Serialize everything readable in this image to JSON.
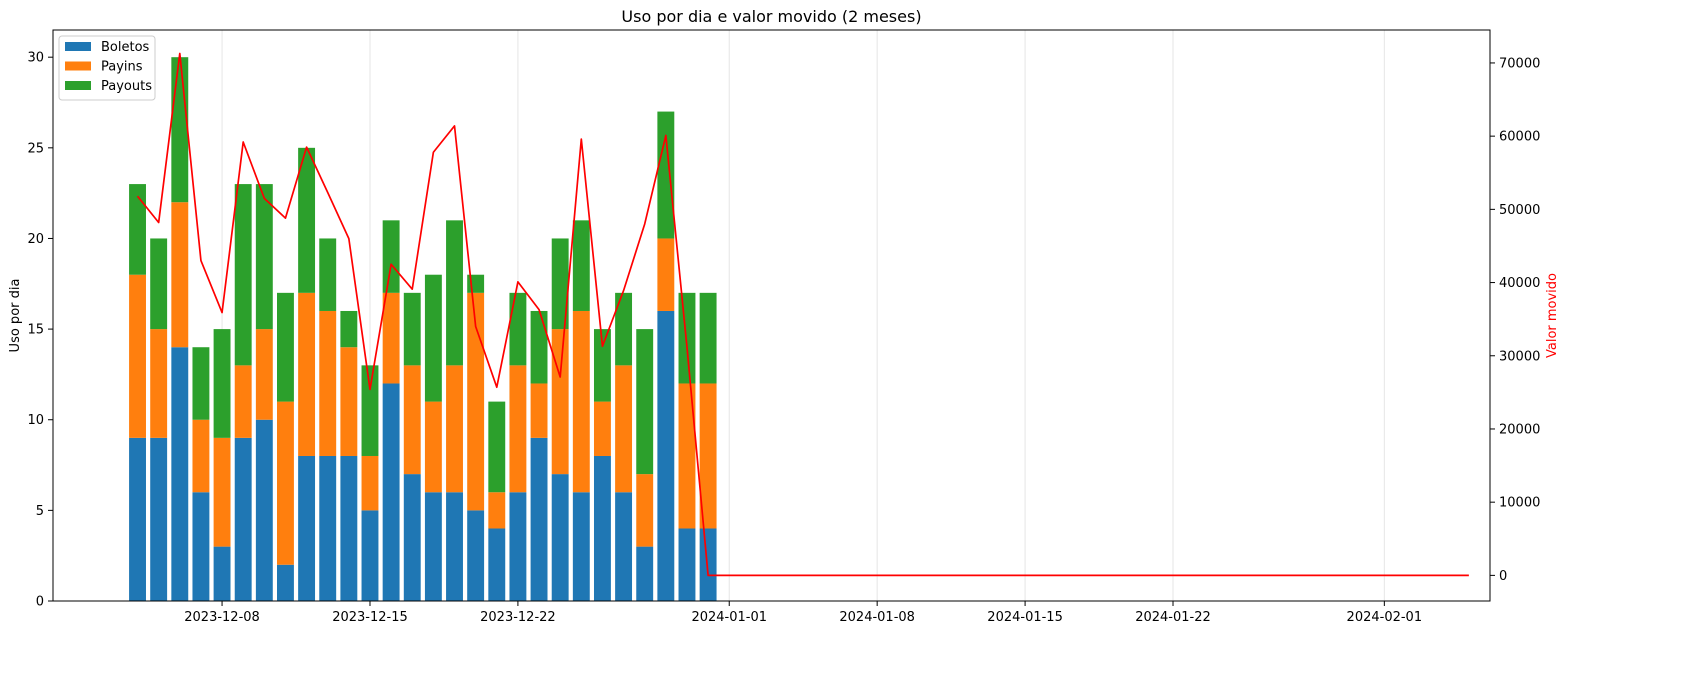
{
  "chart_data": {
    "type": "bar",
    "title": "Uso por dia e valor movido (2 meses)",
    "ylabel": "Uso por dia",
    "y2label": "Valor movido",
    "ylim": [
      0,
      31.5
    ],
    "y2lim": [
      -3500,
      74500
    ],
    "xlim": [
      "2023-11-30",
      "2024-02-06"
    ],
    "yticks": [
      0,
      5,
      10,
      15,
      20,
      25,
      30
    ],
    "y2ticks": [
      0,
      10000,
      20000,
      30000,
      40000,
      50000,
      60000,
      70000
    ],
    "xticks": [
      "2023-12-08",
      "2023-12-15",
      "2023-12-22",
      "2024-01-01",
      "2024-01-08",
      "2024-01-15",
      "2024-01-22",
      "2024-02-01"
    ],
    "x_grid": true,
    "legend_position": "top-left",
    "colors": {
      "Boletos": "#1f77b4",
      "Payins": "#ff7f0e",
      "Payouts": "#2ca02c",
      "line": "#ff0000"
    },
    "categories": [
      "2023-12-04",
      "2023-12-05",
      "2023-12-06",
      "2023-12-07",
      "2023-12-08",
      "2023-12-09",
      "2023-12-10",
      "2023-12-11",
      "2023-12-12",
      "2023-12-13",
      "2023-12-14",
      "2023-12-15",
      "2023-12-16",
      "2023-12-17",
      "2023-12-18",
      "2023-12-19",
      "2023-12-20",
      "2023-12-21",
      "2023-12-22",
      "2023-12-23",
      "2023-12-24",
      "2023-12-25",
      "2023-12-26",
      "2023-12-27",
      "2023-12-28",
      "2023-12-29",
      "2023-12-30",
      "2023-12-31"
    ],
    "series": [
      {
        "name": "Boletos",
        "values": [
          9,
          9,
          14,
          6,
          3,
          9,
          10,
          2,
          8,
          8,
          8,
          5,
          12,
          7,
          6,
          6,
          5,
          4,
          6,
          9,
          7,
          6,
          8,
          6,
          3,
          16,
          4,
          4
        ]
      },
      {
        "name": "Payins",
        "values": [
          9,
          6,
          8,
          4,
          6,
          4,
          5,
          9,
          9,
          8,
          6,
          3,
          5,
          6,
          5,
          7,
          12,
          2,
          7,
          3,
          8,
          10,
          3,
          7,
          4,
          4,
          8,
          8
        ]
      },
      {
        "name": "Payouts",
        "values": [
          5,
          5,
          8,
          4,
          6,
          10,
          8,
          6,
          8,
          4,
          2,
          5,
          4,
          4,
          7,
          8,
          1,
          5,
          4,
          4,
          5,
          5,
          4,
          4,
          8,
          7,
          5,
          5
        ]
      }
    ],
    "line_series": {
      "dates": [
        "2023-12-04",
        "2023-12-05",
        "2023-12-06",
        "2023-12-07",
        "2023-12-08",
        "2023-12-09",
        "2023-12-10",
        "2023-12-11",
        "2023-12-12",
        "2023-12-13",
        "2023-12-14",
        "2023-12-15",
        "2023-12-16",
        "2023-12-17",
        "2023-12-18",
        "2023-12-19",
        "2023-12-20",
        "2023-12-21",
        "2023-12-22",
        "2023-12-23",
        "2023-12-24",
        "2023-12-25",
        "2023-12-26",
        "2023-12-27",
        "2023-12-28",
        "2023-12-29",
        "2023-12-30",
        "2023-12-31",
        "2024-01-01",
        "2024-01-02",
        "2024-01-03",
        "2024-01-04",
        "2024-01-05",
        "2024-01-06",
        "2024-01-07",
        "2024-01-08",
        "2024-01-09",
        "2024-01-10",
        "2024-01-11",
        "2024-01-12",
        "2024-01-13",
        "2024-01-14",
        "2024-01-15",
        "2024-01-16",
        "2024-01-17",
        "2024-01-18",
        "2024-01-19",
        "2024-01-20",
        "2024-01-21",
        "2024-01-22",
        "2024-01-23",
        "2024-01-24",
        "2024-01-25",
        "2024-01-26",
        "2024-01-27",
        "2024-01-28",
        "2024-01-29",
        "2024-01-30",
        "2024-01-31",
        "2024-02-01",
        "2024-02-02",
        "2024-02-03",
        "2024-02-04",
        "2024-02-05"
      ],
      "values": [
        51800,
        48200,
        71300,
        43000,
        35900,
        59200,
        51500,
        48800,
        58500,
        52300,
        46000,
        25400,
        42500,
        39100,
        57800,
        61400,
        34000,
        25700,
        40100,
        36300,
        27100,
        59600,
        31300,
        38900,
        48000,
        60100,
        31200,
        0,
        0,
        0,
        0,
        0,
        0,
        0,
        0,
        0,
        0,
        0,
        0,
        0,
        0,
        0,
        0,
        0,
        0,
        0,
        0,
        0,
        0,
        0,
        0,
        0,
        0,
        0,
        0,
        0,
        0,
        0,
        0,
        0,
        0,
        0,
        0,
        0
      ]
    }
  }
}
